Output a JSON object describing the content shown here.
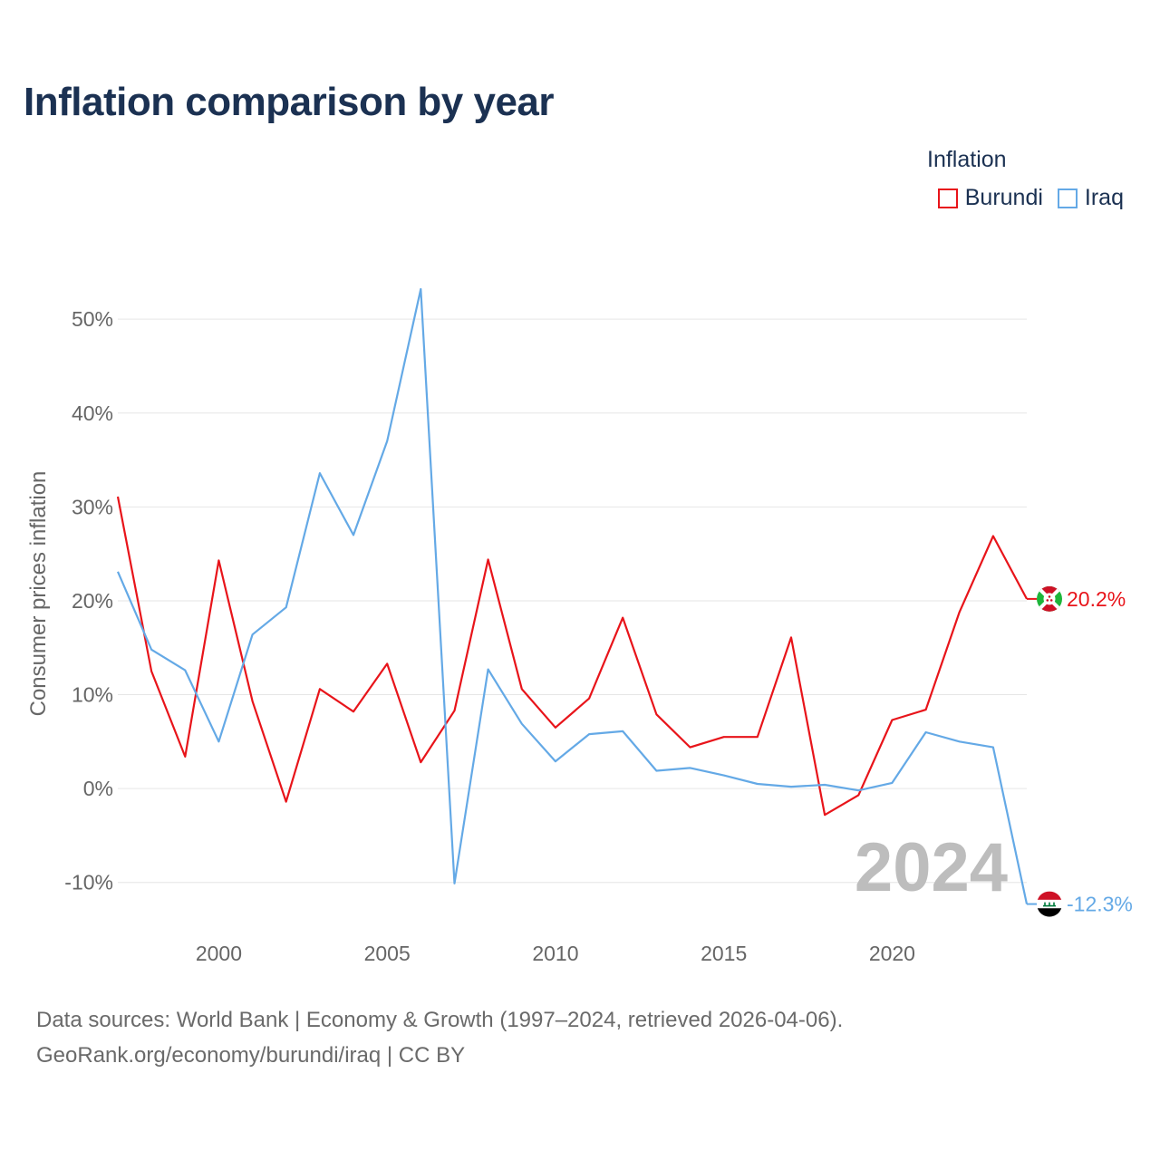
{
  "title": "Inflation comparison by year",
  "legend": {
    "title": "Inflation",
    "items": [
      {
        "label": "Burundi",
        "color": "#e8141a"
      },
      {
        "label": "Iraq",
        "color": "#64a9e6"
      }
    ]
  },
  "footer": {
    "line1": "Data sources: World Bank | Economy & Growth (1997–2024, retrieved 2026-04-06).",
    "line2": "GeoRank.org/economy/burundi/iraq | CC BY"
  },
  "chart_data": {
    "type": "line",
    "title": "Inflation comparison by year",
    "xlabel": "",
    "ylabel": "Consumer prices inflation",
    "xlim": [
      1997,
      2024
    ],
    "ylim": [
      -13.5,
      56
    ],
    "x_ticks": [
      2000,
      2005,
      2010,
      2015,
      2020
    ],
    "x_tick_labels": [
      "2000",
      "2005",
      "2010",
      "2015",
      "2020"
    ],
    "y_ticks": [
      -10,
      0,
      10,
      20,
      30,
      40,
      50
    ],
    "y_tick_labels": [
      "-10%",
      "0%",
      "10%",
      "20%",
      "30%",
      "40%",
      "50%"
    ],
    "grid": true,
    "legend_position": "top-right",
    "current_year_label": "2024",
    "x": [
      1997,
      1998,
      1999,
      2000,
      2001,
      2002,
      2003,
      2004,
      2005,
      2006,
      2007,
      2008,
      2009,
      2010,
      2011,
      2012,
      2013,
      2014,
      2015,
      2016,
      2017,
      2018,
      2019,
      2020,
      2021,
      2022,
      2023,
      2024
    ],
    "series": [
      {
        "name": "Burundi",
        "color": "#e8141a",
        "end_label": "20.2%",
        "flag": "burundi-flag",
        "values": [
          31.1,
          12.5,
          3.4,
          24.3,
          9.3,
          -1.4,
          10.6,
          8.2,
          13.3,
          2.8,
          8.3,
          24.4,
          10.6,
          6.5,
          9.6,
          18.2,
          7.9,
          4.4,
          5.5,
          5.5,
          16.1,
          -2.8,
          -0.7,
          7.3,
          8.4,
          18.8,
          26.9,
          20.2
        ]
      },
      {
        "name": "Iraq",
        "color": "#64a9e6",
        "end_label": "-12.3%",
        "flag": "iraq-flag",
        "values": [
          23.1,
          14.8,
          12.6,
          5.0,
          16.4,
          19.3,
          33.6,
          27.0,
          37.0,
          53.2,
          -10.1,
          12.7,
          6.9,
          2.9,
          5.8,
          6.1,
          1.9,
          2.2,
          1.4,
          0.5,
          0.2,
          0.4,
          -0.2,
          0.6,
          6.0,
          5.0,
          4.4,
          -12.3
        ]
      }
    ]
  }
}
